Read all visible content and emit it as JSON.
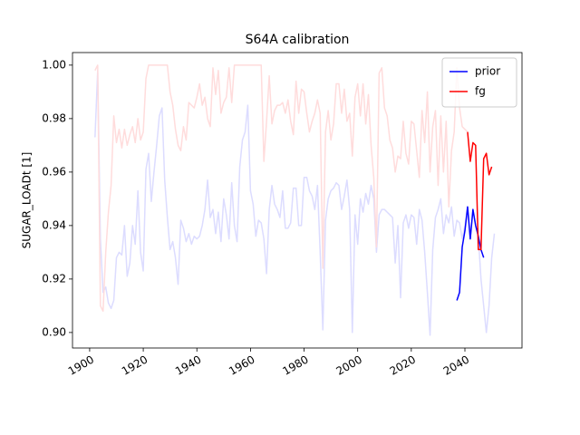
{
  "chart_data": {
    "type": "line",
    "title": "S64A calibration",
    "ylabel": "SUGAR_LOADt [1]",
    "xlim": [
      1893.6,
      2061.3
    ],
    "ylim": [
      0.8942,
      1.0047
    ],
    "xticks": [
      1900,
      1920,
      1940,
      1960,
      1980,
      2000,
      2020,
      2040
    ],
    "yticks": [
      {
        "value": 0.9,
        "label": "0.90"
      },
      {
        "value": 0.92,
        "label": "0.92"
      },
      {
        "value": 0.94,
        "label": "0.94"
      },
      {
        "value": 0.96,
        "label": "0.96"
      },
      {
        "value": 0.98,
        "label": "0.98"
      },
      {
        "value": 1.0,
        "label": "1.00"
      }
    ],
    "legend": "upper right",
    "grid": false,
    "series": [
      {
        "color": "#dcdcff",
        "x": [
          1902,
          1903,
          1904,
          1905,
          1906,
          1907,
          1908,
          1909,
          1910,
          1911,
          1912,
          1913,
          1914,
          1915,
          1916,
          1917,
          1918,
          1919,
          1920,
          1921,
          1922,
          1923,
          1924,
          1925,
          1926,
          1927,
          1928,
          1929,
          1930,
          1931,
          1932,
          1933,
          1934,
          1935,
          1936,
          1937,
          1938,
          1939,
          1940,
          1941,
          1942,
          1943,
          1944,
          1945,
          1946,
          1947,
          1948,
          1949,
          1950,
          1951,
          1952,
          1953,
          1954,
          1955,
          1956,
          1957,
          1958,
          1959,
          1960,
          1961,
          1962,
          1963,
          1964,
          1965,
          1966,
          1967,
          1968,
          1969,
          1970,
          1971,
          1972,
          1973,
          1974,
          1975,
          1976,
          1977,
          1978,
          1979,
          1980,
          1981,
          1982,
          1983,
          1984,
          1985,
          1986,
          1987,
          1988,
          1989,
          1990,
          1991,
          1992,
          1993,
          1994,
          1995,
          1996,
          1997,
          1998,
          1999,
          2000,
          2001,
          2002,
          2003,
          2004,
          2005,
          2006,
          2007,
          2008,
          2009,
          2010,
          2011,
          2012,
          2013,
          2014,
          2015,
          2016,
          2017,
          2018,
          2019,
          2020,
          2021,
          2022,
          2023,
          2024,
          2025,
          2026,
          2027,
          2028,
          2029,
          2030,
          2031,
          2032,
          2033,
          2034,
          2035,
          2036,
          2037,
          2038,
          2039,
          2040,
          2041,
          2042,
          2043,
          2044,
          2045,
          2046,
          2047,
          2048,
          2049,
          2050,
          2051
        ],
        "values": [
          0.973,
          0.998,
          0.935,
          0.915,
          0.917,
          0.911,
          0.909,
          0.912,
          0.928,
          0.93,
          0.929,
          0.94,
          0.921,
          0.926,
          0.94,
          0.933,
          0.953,
          0.93,
          0.923,
          0.961,
          0.967,
          0.949,
          0.96,
          0.97,
          0.981,
          0.984,
          0.957,
          0.943,
          0.931,
          0.934,
          0.928,
          0.918,
          0.942,
          0.939,
          0.934,
          0.937,
          0.933,
          0.936,
          0.935,
          0.936,
          0.94,
          0.946,
          0.957,
          0.943,
          0.946,
          0.937,
          0.945,
          0.934,
          0.95,
          0.944,
          0.935,
          0.956,
          0.94,
          0.934,
          0.962,
          0.972,
          0.975,
          0.985,
          0.953,
          0.948,
          0.936,
          0.942,
          0.941,
          0.935,
          0.922,
          0.946,
          0.955,
          0.948,
          0.946,
          0.943,
          0.953,
          0.939,
          0.939,
          0.941,
          0.954,
          0.954,
          0.94,
          0.94,
          0.958,
          0.958,
          0.953,
          0.951,
          0.946,
          0.955,
          0.93,
          0.901,
          0.942,
          0.95,
          0.953,
          0.954,
          0.956,
          0.955,
          0.946,
          0.951,
          0.957,
          0.946,
          0.9,
          0.944,
          0.933,
          0.95,
          0.945,
          0.952,
          0.948,
          0.955,
          0.95,
          0.93,
          0.944,
          0.946,
          0.946,
          0.945,
          0.944,
          0.943,
          0.926,
          0.94,
          0.913,
          0.941,
          0.944,
          0.939,
          0.944,
          0.943,
          0.933,
          0.946,
          0.942,
          0.93,
          0.915,
          0.899,
          0.931,
          0.943,
          0.946,
          0.95,
          0.937,
          0.944,
          0.941,
          0.947,
          0.936,
          0.942,
          0.941,
          0.935,
          0.94,
          0.947,
          0.935,
          0.946,
          0.94,
          0.936,
          0.92,
          0.91,
          0.9,
          0.91,
          0.928,
          0.937
        ]
      },
      {
        "color": "#ffdcdc",
        "x": [
          1902,
          1903,
          1904,
          1905,
          1906,
          1907,
          1908,
          1909,
          1910,
          1911,
          1912,
          1913,
          1914,
          1915,
          1916,
          1917,
          1918,
          1919,
          1920,
          1921,
          1922,
          1923,
          1924,
          1925,
          1926,
          1927,
          1928,
          1929,
          1930,
          1931,
          1932,
          1933,
          1934,
          1935,
          1936,
          1937,
          1938,
          1939,
          1940,
          1941,
          1942,
          1943,
          1944,
          1945,
          1946,
          1947,
          1948,
          1949,
          1950,
          1951,
          1952,
          1953,
          1954,
          1955,
          1956,
          1957,
          1958,
          1959,
          1960,
          1961,
          1962,
          1963,
          1964,
          1965,
          1966,
          1967,
          1968,
          1969,
          1970,
          1971,
          1972,
          1973,
          1974,
          1975,
          1976,
          1977,
          1978,
          1979,
          1980,
          1981,
          1982,
          1983,
          1984,
          1985,
          1986,
          1987,
          1988,
          1989,
          1990,
          1991,
          1992,
          1993,
          1994,
          1995,
          1996,
          1997,
          1998,
          1999,
          2000,
          2001,
          2002,
          2003,
          2004,
          2005,
          2006,
          2007,
          2008,
          2009,
          2010,
          2011,
          2012,
          2013,
          2014,
          2015,
          2016,
          2017,
          2018,
          2019,
          2020,
          2021,
          2022,
          2023,
          2024,
          2025,
          2026,
          2027,
          2028,
          2029,
          2030,
          2031,
          2032,
          2033,
          2034,
          2035,
          2036,
          2037,
          2038,
          2039,
          2040,
          2041
        ],
        "values": [
          0.998,
          1.0,
          0.91,
          0.908,
          0.93,
          0.945,
          0.955,
          0.981,
          0.971,
          0.976,
          0.969,
          0.976,
          0.97,
          0.974,
          0.977,
          0.971,
          0.98,
          0.972,
          0.975,
          0.995,
          1.0,
          1.0,
          1.0,
          1.0,
          1.0,
          1.0,
          1.0,
          1.0,
          0.99,
          0.985,
          0.976,
          0.97,
          0.968,
          0.977,
          0.972,
          0.986,
          0.985,
          0.984,
          0.988,
          0.993,
          0.985,
          0.988,
          0.98,
          0.977,
          0.999,
          0.989,
          0.998,
          0.982,
          0.986,
          0.988,
          0.999,
          0.986,
          1.0,
          1.0,
          1.0,
          1.0,
          1.0,
          1.0,
          1.0,
          1.0,
          1.0,
          1.0,
          1.0,
          0.964,
          0.979,
          0.996,
          0.978,
          0.983,
          0.985,
          0.985,
          0.986,
          0.982,
          0.987,
          0.979,
          0.974,
          0.994,
          0.982,
          0.991,
          0.99,
          0.982,
          0.975,
          0.979,
          0.982,
          0.987,
          0.982,
          0.924,
          0.975,
          0.983,
          0.972,
          0.978,
          0.993,
          0.993,
          0.982,
          0.991,
          0.979,
          0.982,
          0.966,
          0.988,
          0.993,
          0.981,
          0.993,
          0.978,
          0.989,
          0.97,
          0.958,
          0.932,
          0.997,
          0.999,
          0.984,
          0.981,
          0.972,
          0.969,
          0.96,
          0.966,
          0.965,
          0.979,
          0.967,
          0.963,
          0.979,
          0.978,
          0.968,
          0.958,
          0.983,
          0.971,
          0.99,
          0.96,
          0.977,
          0.983,
          0.955,
          0.981,
          0.96,
          0.979,
          0.947,
          0.968,
          0.975,
          0.999,
          0.984,
          0.977,
          0.976,
          0.975
        ]
      },
      {
        "name": "prior",
        "color": "#0000ff",
        "x": [
          2037,
          2038,
          2039,
          2040,
          2041,
          2042,
          2043,
          2044,
          2045,
          2046,
          2047
        ],
        "values": [
          0.912,
          0.915,
          0.932,
          0.938,
          0.947,
          0.935,
          0.946,
          0.94,
          0.936,
          0.931,
          0.928
        ]
      },
      {
        "name": "fg",
        "color": "#ff0000",
        "x": [
          2041,
          2042,
          2043,
          2044,
          2045,
          2046,
          2047,
          2048,
          2049,
          2050
        ],
        "values": [
          0.975,
          0.964,
          0.971,
          0.97,
          0.931,
          0.931,
          0.965,
          0.967,
          0.959,
          0.962
        ]
      }
    ]
  }
}
